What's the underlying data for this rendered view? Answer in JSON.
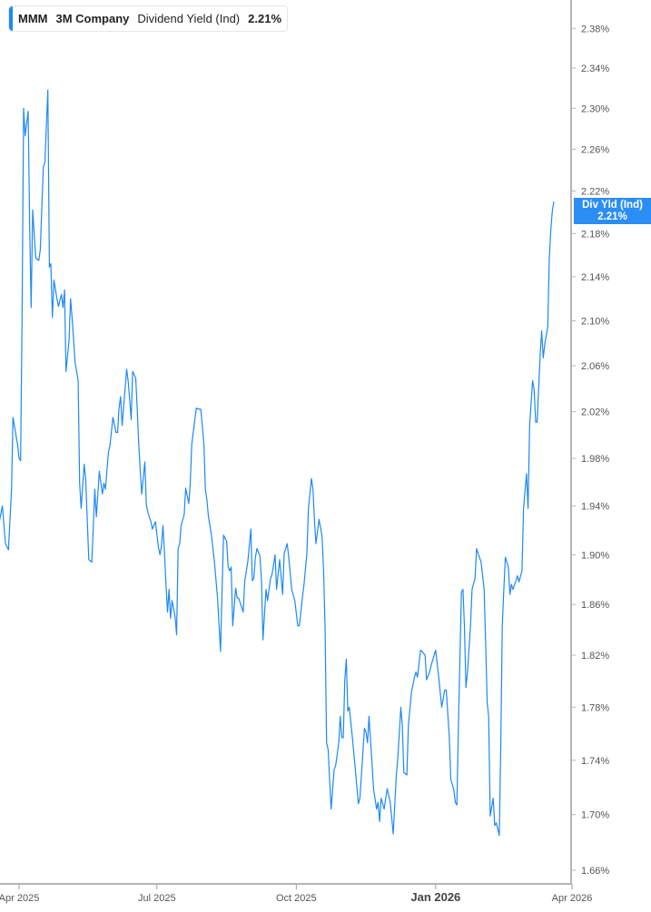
{
  "legend": {
    "ticker": "MMM",
    "company": "3M Company",
    "metric": "Dividend Yield (Ind)",
    "value": "2.21%"
  },
  "price_tag": {
    "label": "Div Yld (Ind)",
    "value": "2.21%"
  },
  "colors": {
    "series": "#1e88f5",
    "tag": "#2a8ef5",
    "axis": "#b5b5b5",
    "text": "#555555"
  },
  "chart_data": {
    "type": "line",
    "title": "",
    "xlabel": "",
    "ylabel": "",
    "y_scale": "log",
    "ylim": [
      1.65,
      2.4
    ],
    "grid": false,
    "legend_placement": "top-left",
    "y_ticks": [
      "2.38%",
      "2.34%",
      "2.30%",
      "2.26%",
      "2.22%",
      "2.18%",
      "2.14%",
      "2.10%",
      "2.06%",
      "2.02%",
      "1.98%",
      "1.94%",
      "1.90%",
      "1.86%",
      "1.82%",
      "1.78%",
      "1.74%",
      "1.70%",
      "1.66%"
    ],
    "y_tick_values": [
      2.38,
      2.34,
      2.3,
      2.26,
      2.22,
      2.18,
      2.14,
      2.1,
      2.06,
      2.02,
      1.98,
      1.94,
      1.9,
      1.86,
      1.82,
      1.78,
      1.74,
      1.7,
      1.66
    ],
    "x_ticks": [
      {
        "label": "Apr 2025",
        "date": "2025-04-01",
        "bold": false
      },
      {
        "label": "Jul 2025",
        "date": "2025-07-01",
        "bold": false
      },
      {
        "label": "Oct 2025",
        "date": "2025-10-01",
        "bold": false
      },
      {
        "label": "Jan 2026",
        "date": "2026-01-01",
        "bold": true
      },
      {
        "label": "Apr 2026",
        "date": "2026-04-01",
        "bold": false
      }
    ],
    "series": [
      {
        "dates": [
          "2025-03-19",
          "2025-03-21",
          "2025-03-23",
          "2025-03-25",
          "2025-03-27",
          "2025-03-28",
          "2025-03-31",
          "2025-04-01",
          "2025-04-02",
          "2025-04-03",
          "2025-04-04",
          "2025-04-05",
          "2025-04-07",
          "2025-04-08",
          "2025-04-09",
          "2025-04-10",
          "2025-04-12",
          "2025-04-14",
          "2025-04-15",
          "2025-04-17",
          "2025-04-18",
          "2025-04-20",
          "2025-04-21",
          "2025-04-22",
          "2025-04-23",
          "2025-04-24",
          "2025-04-26",
          "2025-04-27",
          "2025-04-29",
          "2025-04-30",
          "2025-05-01",
          "2025-05-02",
          "2025-05-04",
          "2025-05-05",
          "2025-05-06",
          "2025-05-08",
          "2025-05-10",
          "2025-05-11",
          "2025-05-12",
          "2025-05-14",
          "2025-05-15",
          "2025-05-17",
          "2025-05-19",
          "2025-05-20",
          "2025-05-21",
          "2025-05-22",
          "2025-05-24",
          "2025-05-26",
          "2025-05-27",
          "2025-05-28",
          "2025-05-30",
          "2025-05-31",
          "2025-06-02",
          "2025-06-04",
          "2025-06-05",
          "2025-06-06",
          "2025-06-07",
          "2025-06-08",
          "2025-06-11",
          "2025-06-12",
          "2025-06-13",
          "2025-06-14",
          "2025-06-15",
          "2025-06-17",
          "2025-06-18",
          "2025-06-19",
          "2025-06-20",
          "2025-06-21",
          "2025-06-23",
          "2025-06-24",
          "2025-06-25",
          "2025-06-27",
          "2025-06-28",
          "2025-06-30",
          "2025-07-02",
          "2025-07-03",
          "2025-07-04",
          "2025-07-05",
          "2025-07-06",
          "2025-07-07",
          "2025-07-08",
          "2025-07-09",
          "2025-07-10",
          "2025-07-11",
          "2025-07-13",
          "2025-07-14",
          "2025-07-15",
          "2025-07-16",
          "2025-07-17",
          "2025-07-19",
          "2025-07-20",
          "2025-07-22",
          "2025-07-23",
          "2025-07-24",
          "2025-07-27",
          "2025-07-29",
          "2025-07-30",
          "2025-08-01",
          "2025-08-02",
          "2025-08-03",
          "2025-08-04",
          "2025-08-06",
          "2025-08-08",
          "2025-08-10",
          "2025-08-12",
          "2025-08-13",
          "2025-08-14",
          "2025-08-16",
          "2025-08-17",
          "2025-08-18",
          "2025-08-19",
          "2025-08-20",
          "2025-08-22",
          "2025-08-23",
          "2025-08-24",
          "2025-08-27",
          "2025-08-28",
          "2025-08-30",
          "2025-09-01",
          "2025-09-02",
          "2025-09-03",
          "2025-09-04",
          "2025-09-05",
          "2025-09-07",
          "2025-09-08",
          "2025-09-09",
          "2025-09-11",
          "2025-09-12",
          "2025-09-14",
          "2025-09-15",
          "2025-09-17",
          "2025-09-18",
          "2025-09-20",
          "2025-09-22",
          "2025-09-23",
          "2025-09-25",
          "2025-09-26",
          "2025-09-28",
          "2025-09-30",
          "2025-10-02",
          "2025-10-03",
          "2025-10-05",
          "2025-10-06",
          "2025-10-08",
          "2025-10-09",
          "2025-10-11",
          "2025-10-12",
          "2025-10-13",
          "2025-10-14",
          "2025-10-16",
          "2025-10-18",
          "2025-10-19",
          "2025-10-20",
          "2025-10-21",
          "2025-10-22",
          "2025-10-23",
          "2025-10-24",
          "2025-10-26",
          "2025-10-27",
          "2025-10-29",
          "2025-10-30",
          "2025-10-31",
          "2025-11-01",
          "2025-11-02",
          "2025-11-03",
          "2025-11-04",
          "2025-11-05",
          "2025-11-07",
          "2025-11-09",
          "2025-11-11",
          "2025-11-12",
          "2025-11-14",
          "2025-11-15",
          "2025-11-16",
          "2025-11-17",
          "2025-11-18",
          "2025-11-20",
          "2025-11-21",
          "2025-11-23",
          "2025-11-24",
          "2025-11-25",
          "2025-11-26",
          "2025-11-28",
          "2025-11-30",
          "2025-12-02",
          "2025-12-04",
          "2025-12-06",
          "2025-12-07",
          "2025-12-09",
          "2025-12-10",
          "2025-12-11",
          "2025-12-13",
          "2025-12-14",
          "2025-12-16",
          "2025-12-18",
          "2025-12-19",
          "2025-12-20",
          "2025-12-22",
          "2025-12-23",
          "2025-12-25",
          "2025-12-26",
          "2025-12-28",
          "2025-12-29",
          "2026-01-01",
          "2026-01-03",
          "2026-01-05",
          "2026-01-07",
          "2026-01-08",
          "2026-01-10",
          "2026-01-11",
          "2026-01-13",
          "2026-01-14",
          "2026-01-15",
          "2026-01-16",
          "2026-01-18",
          "2026-01-19",
          "2026-01-20",
          "2026-01-21",
          "2026-01-22",
          "2026-01-24",
          "2026-01-25",
          "2026-01-27",
          "2026-01-28",
          "2026-01-29",
          "2026-01-31",
          "2026-02-02",
          "2026-02-03",
          "2026-02-04",
          "2026-02-05",
          "2026-02-06",
          "2026-02-08",
          "2026-02-09",
          "2026-02-10",
          "2026-02-12",
          "2026-02-13",
          "2026-02-14",
          "2026-02-15",
          "2026-02-16",
          "2026-02-18",
          "2026-02-19",
          "2026-02-20",
          "2026-02-21",
          "2026-02-23",
          "2026-02-24",
          "2026-02-25",
          "2026-02-27",
          "2026-02-28",
          "2026-03-02",
          "2026-03-03",
          "2026-03-04",
          "2026-03-06",
          "2026-03-07",
          "2026-03-08",
          "2026-03-09",
          "2026-03-11",
          "2026-03-12",
          "2026-03-13",
          "2026-03-14",
          "2026-03-16",
          "2026-03-17",
          "2026-03-18",
          "2026-03-19",
          "2026-03-20"
        ],
        "values": [
          1.927,
          1.94,
          1.909,
          1.904,
          1.954,
          2.015,
          1.992,
          1.98,
          1.978,
          2.103,
          2.3,
          2.273,
          2.297,
          2.187,
          2.112,
          2.202,
          2.157,
          2.155,
          2.165,
          2.243,
          2.247,
          2.318,
          2.149,
          2.152,
          2.103,
          2.137,
          2.12,
          2.113,
          2.124,
          2.112,
          2.128,
          2.055,
          2.083,
          2.12,
          2.103,
          2.063,
          2.047,
          1.959,
          1.938,
          1.975,
          1.962,
          1.896,
          1.894,
          1.924,
          1.954,
          1.931,
          1.969,
          1.95,
          1.959,
          1.954,
          1.985,
          1.991,
          2.015,
          2.002,
          2.002,
          2.023,
          2.033,
          2.008,
          2.057,
          2.047,
          2.031,
          2.013,
          2.055,
          2.049,
          2.023,
          1.992,
          1.969,
          1.95,
          1.977,
          1.941,
          1.935,
          1.927,
          1.921,
          1.927,
          1.906,
          1.9,
          1.907,
          1.924,
          1.901,
          1.876,
          1.854,
          1.872,
          1.849,
          1.863,
          1.85,
          1.836,
          1.905,
          1.909,
          1.924,
          1.933,
          1.955,
          1.942,
          1.958,
          1.992,
          2.023,
          2.022,
          2.022,
          1.992,
          1.954,
          1.945,
          1.931,
          1.916,
          1.894,
          1.865,
          1.823,
          1.872,
          1.916,
          1.911,
          1.89,
          1.887,
          1.89,
          1.843,
          1.873,
          1.865,
          1.865,
          1.854,
          1.879,
          1.894,
          1.921,
          1.879,
          1.881,
          1.898,
          1.905,
          1.899,
          1.879,
          1.832,
          1.872,
          1.863,
          1.881,
          1.884,
          1.9,
          1.872,
          1.896,
          1.868,
          1.901,
          1.909,
          1.898,
          1.872,
          1.863,
          1.843,
          1.843,
          1.865,
          1.875,
          1.901,
          1.938,
          1.963,
          1.954,
          1.927,
          1.909,
          1.929,
          1.915,
          1.887,
          1.843,
          1.753,
          1.748,
          1.726,
          1.704,
          1.733,
          1.736,
          1.753,
          1.773,
          1.757,
          1.757,
          1.8,
          1.817,
          1.777,
          1.78,
          1.757,
          1.733,
          1.708,
          1.712,
          1.746,
          1.764,
          1.761,
          1.753,
          1.773,
          1.737,
          1.719,
          1.704,
          1.709,
          1.695,
          1.712,
          1.704,
          1.719,
          1.709,
          1.686,
          1.729,
          1.741,
          1.78,
          1.766,
          1.731,
          1.729,
          1.766,
          1.791,
          1.803,
          1.807,
          1.803,
          1.824,
          1.823,
          1.82,
          1.801,
          1.807,
          1.812,
          1.824,
          1.803,
          1.78,
          1.793,
          1.793,
          1.757,
          1.726,
          1.718,
          1.709,
          1.707,
          1.766,
          1.87,
          1.872,
          1.843,
          1.795,
          1.807,
          1.843,
          1.872,
          1.881,
          1.905,
          1.901,
          1.894,
          1.872,
          1.829,
          1.783,
          1.773,
          1.699,
          1.712,
          1.692,
          1.694,
          1.685,
          1.753,
          1.843,
          1.872,
          1.898,
          1.89,
          1.868,
          1.876,
          1.872,
          1.879,
          1.883,
          1.878,
          1.887,
          1.938,
          1.967,
          1.938,
          2.008,
          2.047,
          2.039,
          2.011,
          2.011,
          2.071,
          2.091,
          2.067,
          2.079,
          2.095,
          2.157,
          2.183,
          2.201,
          2.21
        ]
      }
    ]
  }
}
